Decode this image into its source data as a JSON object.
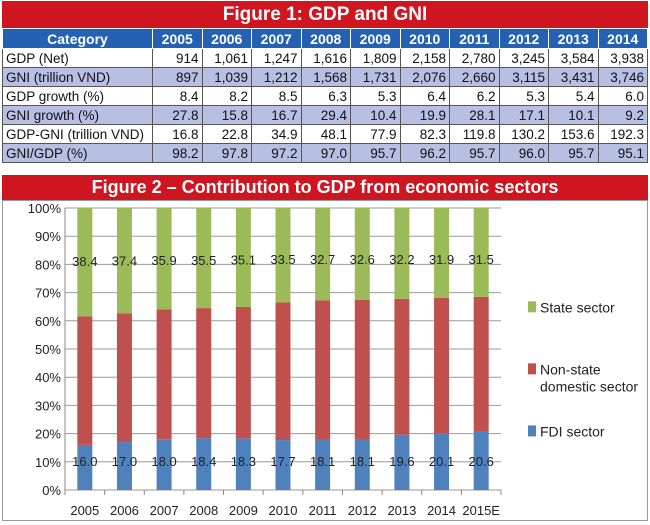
{
  "figure1": {
    "title": "Figure 1: GDP and GNI",
    "headers": [
      "Category",
      "2005",
      "2006",
      "2007",
      "2008",
      "2009",
      "2010",
      "2011",
      "2012",
      "2013",
      "2014"
    ],
    "rows": [
      [
        "GDP (Net)",
        "914",
        "1,061",
        "1,247",
        "1,616",
        "1,809",
        "2,158",
        "2,780",
        "3,245",
        "3,584",
        "3,938"
      ],
      [
        "GNI (trillion VND)",
        "897",
        "1,039",
        "1,212",
        "1,568",
        "1,731",
        "2,076",
        "2,660",
        "3,115",
        "3,431",
        "3,746"
      ],
      [
        "GDP growth (%)",
        "8.4",
        "8.2",
        "8.5",
        "6.3",
        "5.3",
        "6.4",
        "6.2",
        "5.3",
        "5.4",
        "6.0"
      ],
      [
        "GNI growth (%)",
        "27.8",
        "15.8",
        "16.7",
        "29.4",
        "10.4",
        "19.9",
        "28.1",
        "17.1",
        "10.1",
        "9.2"
      ],
      [
        "GDP-GNI (trillion VND)",
        "16.8",
        "22.8",
        "34.9",
        "48.1",
        "77.9",
        "82.3",
        "119.8",
        "130.2",
        "153.6",
        "192.3"
      ],
      [
        "GNI/GDP (%)",
        "98.2",
        "97.8",
        "97.2",
        "97.0",
        "95.7",
        "96.2",
        "95.7",
        "96.0",
        "95.7",
        "95.1"
      ]
    ]
  },
  "chart_data": {
    "type": "bar",
    "stacked": true,
    "title": "Figure 2 – Contribution to GDP from economic sectors",
    "categories": [
      "2005",
      "2006",
      "2007",
      "2008",
      "2009",
      "2010",
      "2011",
      "2012",
      "2013",
      "2014",
      "2015E"
    ],
    "ylim": [
      0,
      100
    ],
    "yticks": [
      "0%",
      "10%",
      "20%",
      "30%",
      "40%",
      "50%",
      "60%",
      "70%",
      "80%",
      "90%",
      "100%"
    ],
    "grid": true,
    "legend_placement": "right",
    "series": [
      {
        "name": "FDI sector",
        "color": "#4f81bd",
        "values": [
          16.0,
          17.0,
          18.0,
          18.4,
          18.3,
          17.7,
          18.1,
          18.1,
          19.6,
          20.1,
          20.6
        ],
        "labels": [
          "16.0",
          "17.0",
          "18.0",
          "18.4",
          "18.3",
          "17.7",
          "18.1",
          "18.1",
          "19.6",
          "20.1",
          "20.6"
        ]
      },
      {
        "name": "Non-state domestic sector",
        "color": "#c0504d",
        "values": [
          45.6,
          45.6,
          46.1,
          46.1,
          46.6,
          48.8,
          49.2,
          49.3,
          48.2,
          48.0,
          47.9
        ]
      },
      {
        "name": "State sector",
        "color": "#9bbb59",
        "values": [
          38.4,
          37.4,
          35.9,
          35.5,
          35.1,
          33.5,
          32.7,
          32.6,
          32.2,
          31.9,
          31.5
        ],
        "labels": [
          "38.4",
          "37.4",
          "35.9",
          "35.5",
          "35.1",
          "33.5",
          "32.7",
          "32.6",
          "32.2",
          "31.9",
          "31.5"
        ]
      }
    ],
    "legend": [
      "State sector",
      "Non-state",
      "domestic sector",
      "FDI sector"
    ]
  }
}
